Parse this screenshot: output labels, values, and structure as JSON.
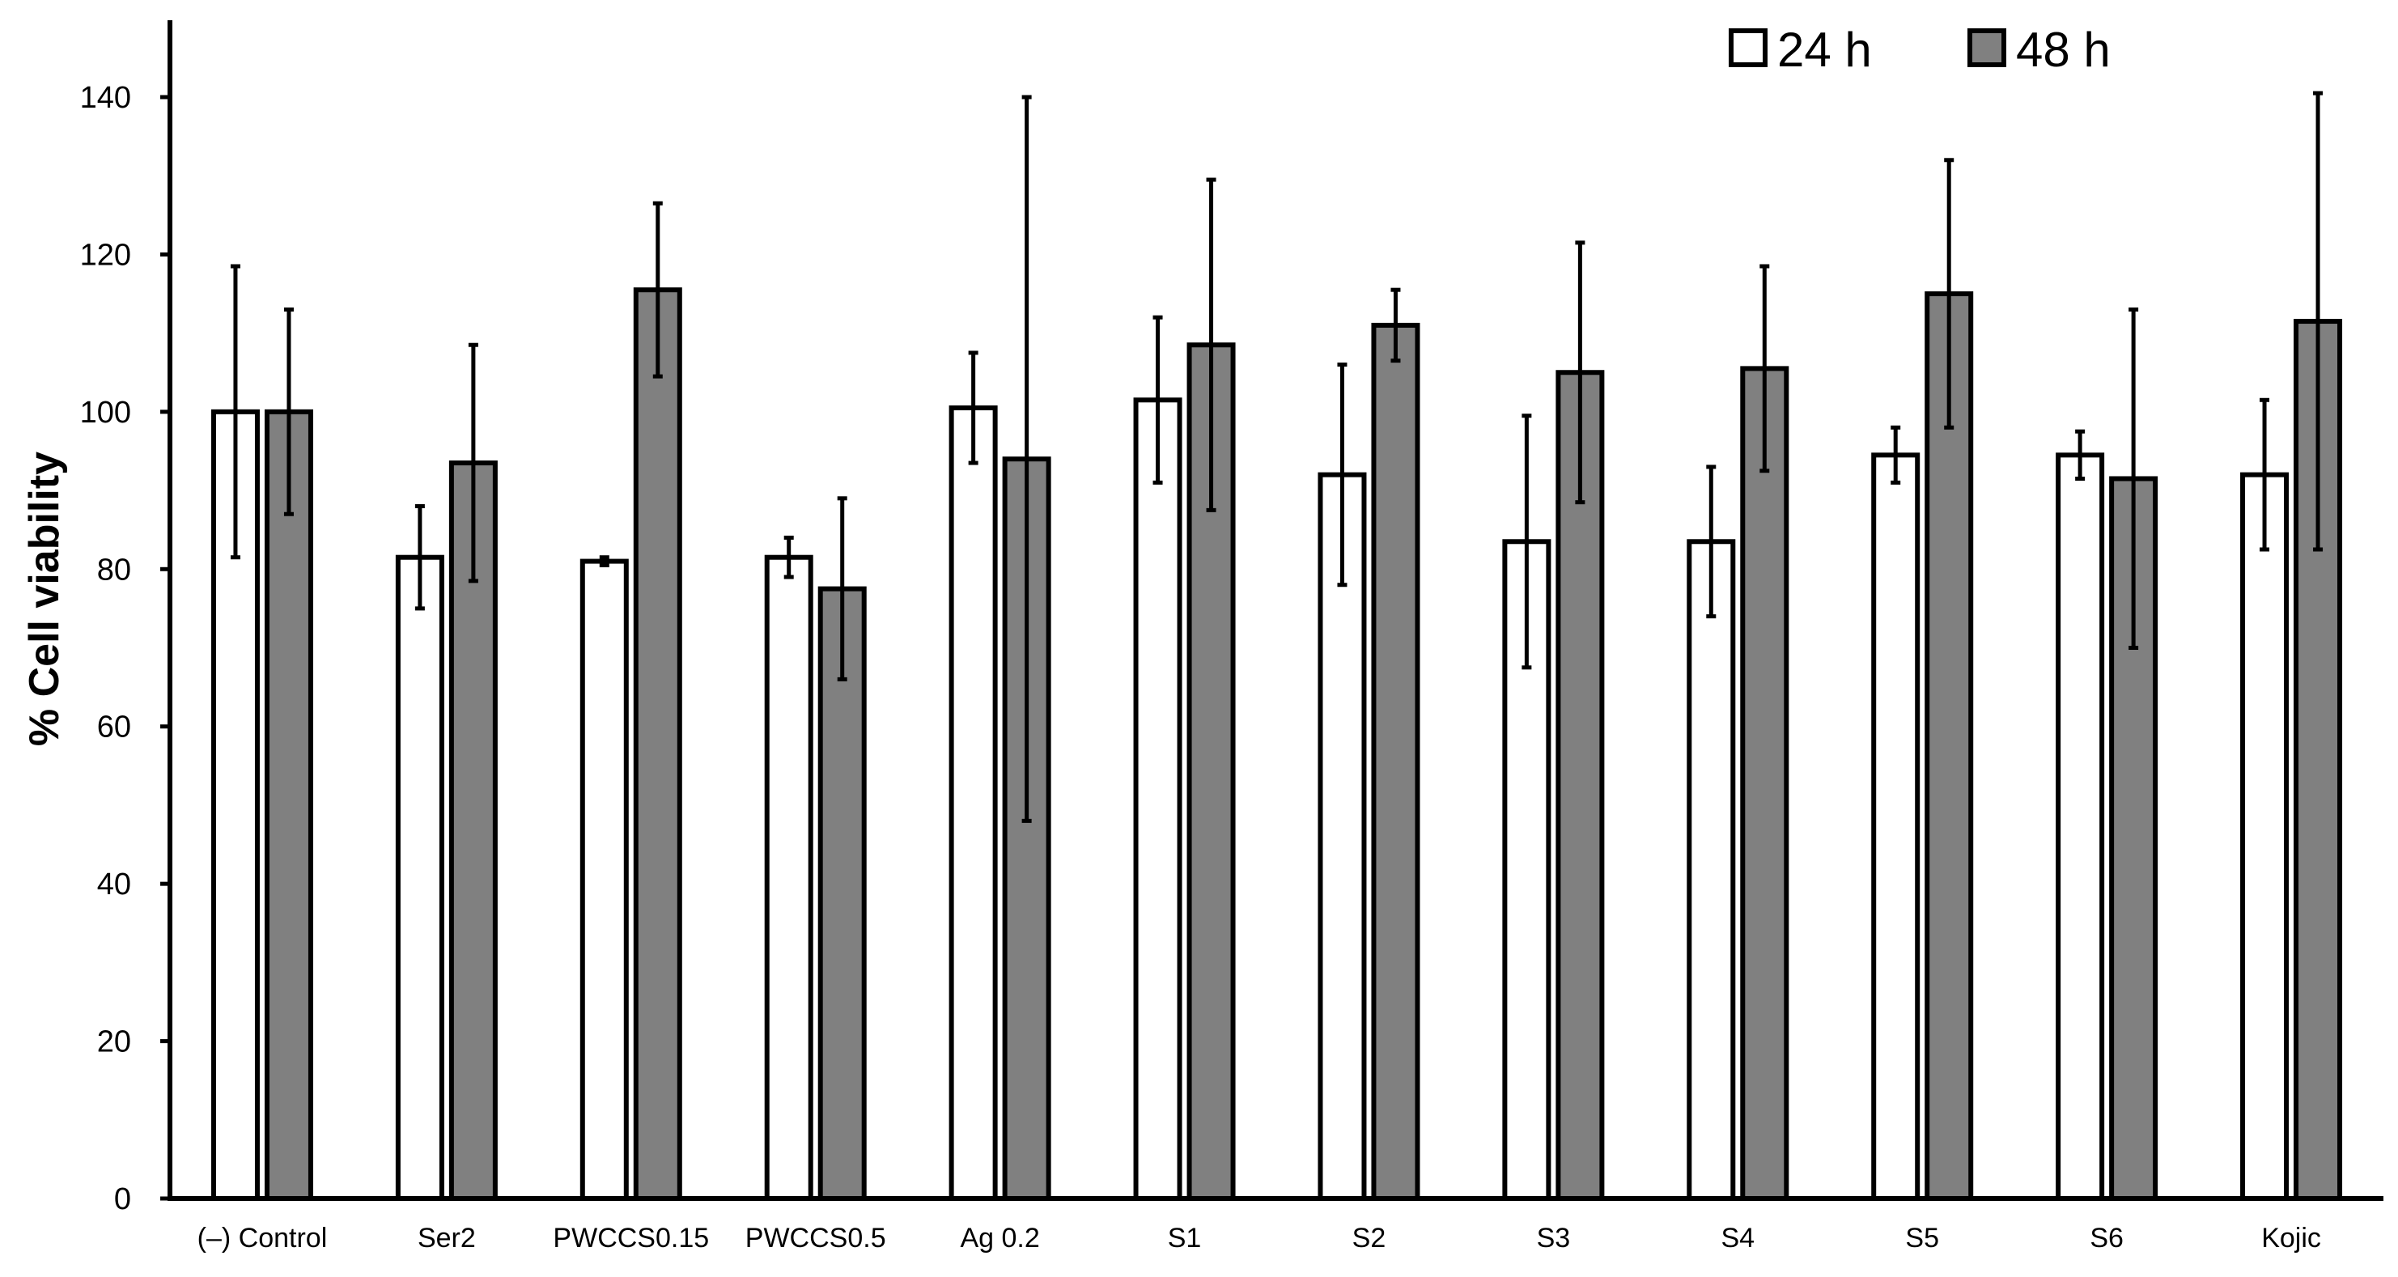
{
  "chart_data": {
    "type": "bar",
    "title": "",
    "xlabel": "",
    "ylabel": "% Cell viability",
    "ylim": [
      0,
      140
    ],
    "yticks": [
      0,
      20,
      40,
      60,
      80,
      100,
      120,
      140
    ],
    "grid": false,
    "legend_position": "top-right",
    "error_bars": true,
    "categories": [
      "(–) Control",
      "Ser2",
      "PWCCS0.15",
      "PWCCS0.5",
      "Ag 0.2",
      "S1",
      "S2",
      "S3",
      "S4",
      "S5",
      "S6",
      "Kojic"
    ],
    "series": [
      {
        "name": "24 h",
        "color": "#ffffff",
        "values": [
          100,
          81.5,
          81,
          81.5,
          100.5,
          101.5,
          92,
          83.5,
          83.5,
          94.5,
          94.5,
          92
        ],
        "errors": [
          18.5,
          6.5,
          0.5,
          2.5,
          7,
          10.5,
          14,
          16,
          9.5,
          3.5,
          3,
          9.5
        ]
      },
      {
        "name": "48 h",
        "color": "#808080",
        "values": [
          100,
          93.5,
          115.5,
          77.5,
          94,
          108.5,
          111,
          105,
          105.5,
          115,
          91.5,
          111.5
        ],
        "errors": [
          13,
          15,
          11,
          11.5,
          46,
          21,
          4.5,
          16.5,
          13,
          17,
          21.5,
          29
        ]
      }
    ]
  }
}
